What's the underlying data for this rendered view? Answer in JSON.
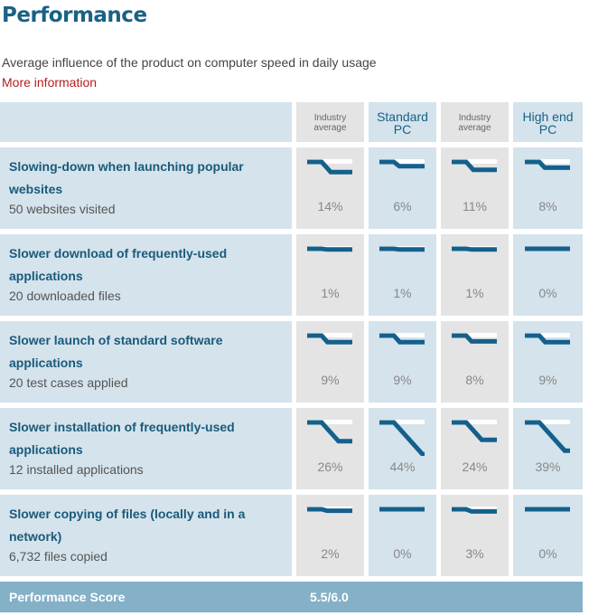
{
  "title": "Performance",
  "subtitle": "Average influence of the product on computer speed in daily usage",
  "more_link": "More information",
  "columns": [
    {
      "label": "Industry average",
      "style": "small",
      "shade": "gray"
    },
    {
      "label": "Standard PC",
      "style": "big",
      "shade": "blue"
    },
    {
      "label": "Industry average",
      "style": "small",
      "shade": "gray"
    },
    {
      "label": "High end PC",
      "style": "big",
      "shade": "blue"
    }
  ],
  "columns_lines": [
    [
      "Industry",
      "average"
    ],
    [
      "Standard",
      "PC"
    ],
    [
      "Industry",
      "average"
    ],
    [
      "High end",
      "PC"
    ]
  ],
  "rows": [
    {
      "title": "Slowing-down when launching popular websites",
      "sub": "50 websites visited",
      "values": [
        "14%",
        "6%",
        "11%",
        "8%"
      ],
      "nums": [
        14,
        6,
        11,
        8
      ]
    },
    {
      "title": "Slower download of frequently-used applications",
      "sub": "20 downloaded files",
      "values": [
        "1%",
        "1%",
        "1%",
        "0%"
      ],
      "nums": [
        1,
        1,
        1,
        0
      ]
    },
    {
      "title": "Slower launch of standard software applications",
      "sub": "20 test cases applied",
      "values": [
        "9%",
        "9%",
        "8%",
        "9%"
      ],
      "nums": [
        9,
        9,
        8,
        9
      ]
    },
    {
      "title": "Slower installation of frequently-used applications",
      "sub": "12 installed applications",
      "values": [
        "26%",
        "44%",
        "24%",
        "39%"
      ],
      "nums": [
        26,
        44,
        24,
        39
      ]
    },
    {
      "title": "Slower copying of files (locally and in a network)",
      "sub": "6,732 files copied",
      "values": [
        "2%",
        "0%",
        "3%",
        "0%"
      ],
      "nums": [
        2,
        0,
        3,
        0
      ]
    }
  ],
  "score": {
    "label": "Performance Score",
    "value": "5.5/6.0"
  },
  "colors": {
    "accent": "#1a6185",
    "link": "#b81c1c",
    "spark": "#14608c",
    "score_bar": "#84b0c8"
  }
}
